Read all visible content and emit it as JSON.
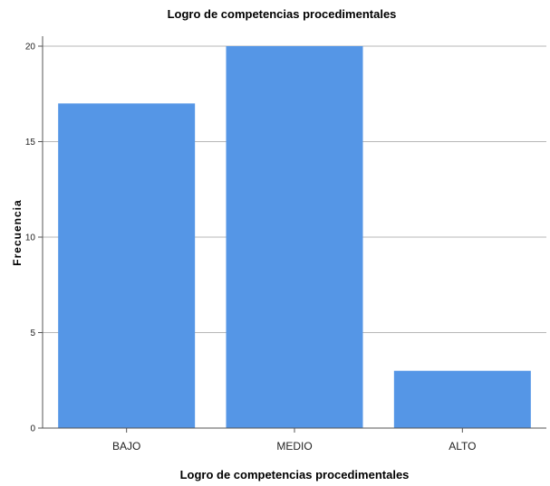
{
  "chart_data": {
    "type": "bar",
    "title": "Logro de competencias procedimentales",
    "xlabel": "Logro de competencias procedimentales",
    "ylabel": "Frecuencia",
    "categories": [
      "BAJO",
      "MEDIO",
      "ALTO"
    ],
    "values": [
      17,
      20,
      3
    ],
    "yticks": [
      0,
      5,
      10,
      15,
      20
    ],
    "ylim": [
      0,
      20
    ],
    "grid": true,
    "bar_color": "#5596e6",
    "grid_color": "#b7b7b7"
  }
}
